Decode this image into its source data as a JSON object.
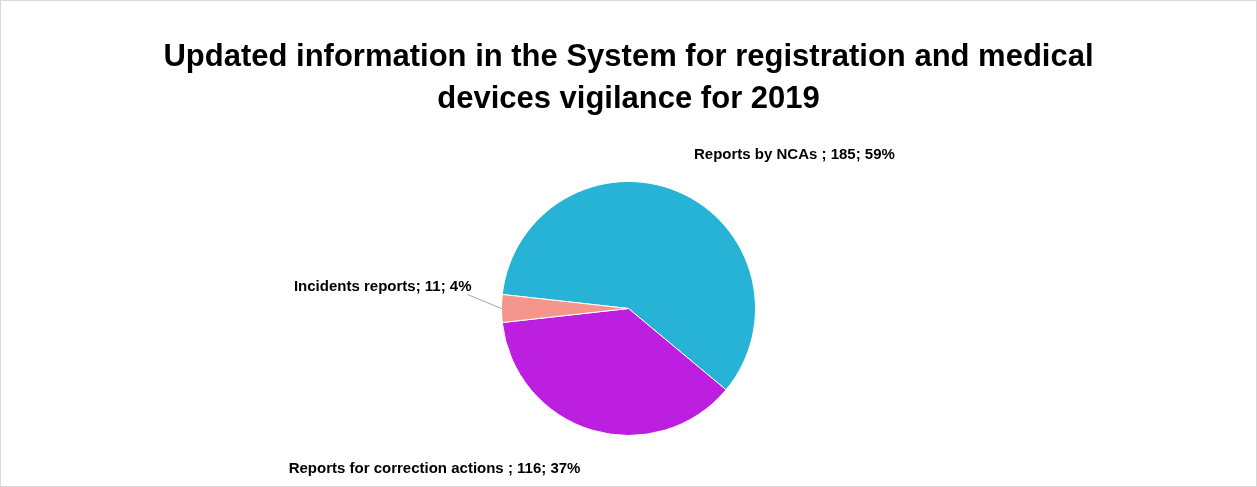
{
  "chart_data": {
    "type": "pie",
    "title": "Updated information in the System for registration and medical devices vigilance for 2019",
    "categories": [
      "Reports by NCAs",
      "Reports for correction actions",
      "Incidents reports"
    ],
    "values": [
      185,
      116,
      11
    ],
    "colors": [
      "#26b3d6",
      "#bd1fe0",
      "#f4968c"
    ],
    "value_labels": [
      " ; 185; 59%",
      " ; 116; 37%",
      "; 11; 4%"
    ],
    "legend": false
  }
}
